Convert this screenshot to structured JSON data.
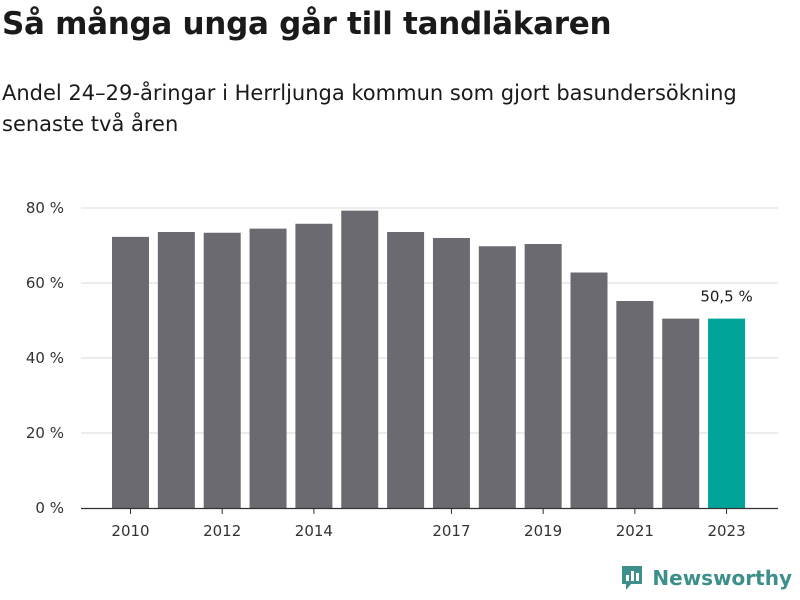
{
  "header": {
    "title": "Så många unga går till tandläkaren",
    "subtitle": "Andel 24–29-åringar i Herrljunga kommun som gjort basundersökning senaste två åren"
  },
  "brand": {
    "name": "Newsworthy",
    "color": "#3d8f8b",
    "icon": "bar-chart-speech-bubble-icon"
  },
  "colors": {
    "bar": "#6b6a70",
    "highlight": "#00a499",
    "grid": "#d9d9d9",
    "axis": "#333333"
  },
  "chart_data": {
    "type": "bar",
    "title": "Så många unga går till tandläkaren",
    "subtitle": "Andel 24–29-åringar i Herrljunga kommun som gjort basundersökning senaste två åren",
    "categories": [
      "2010",
      "2011",
      "2012",
      "2013",
      "2014",
      "2015",
      "2016",
      "2017",
      "2018",
      "2019",
      "2020",
      "2021",
      "2022",
      "2023"
    ],
    "x_tick_labels": [
      "2010",
      "",
      "2012",
      "",
      "2014",
      "",
      "",
      "2017",
      "",
      "2019",
      "",
      "2021",
      "",
      "2023"
    ],
    "values": [
      72.3,
      73.6,
      73.4,
      74.5,
      75.8,
      79.3,
      73.6,
      72.0,
      69.8,
      70.4,
      62.8,
      55.2,
      50.5,
      50.5
    ],
    "highlight_index": 13,
    "annotations": [
      {
        "index": 13,
        "text": "50,5 %"
      }
    ],
    "ylim": [
      0,
      80
    ],
    "y_ticks": [
      0,
      20,
      40,
      60,
      80
    ],
    "y_tick_labels": [
      "0 %",
      "20 %",
      "40 %",
      "60 %",
      "80 %"
    ],
    "xlabel": "",
    "ylabel": "",
    "grid": true,
    "legend": "none"
  }
}
